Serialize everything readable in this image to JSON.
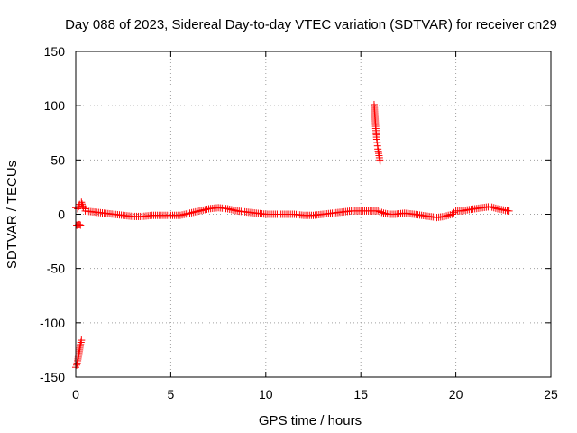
{
  "chart_data": {
    "type": "scatter",
    "title": "Day 088 of 2023, Sidereal Day-to-day VTEC variation (SDTVAR) for receiver cn29",
    "xlabel": "GPS time / hours",
    "ylabel": "SDTVAR / TECUs",
    "xlim": [
      0,
      25
    ],
    "ylim": [
      -150,
      150
    ],
    "xticks": [
      0,
      5,
      10,
      15,
      20,
      25
    ],
    "yticks": [
      -150,
      -100,
      -50,
      0,
      50,
      100,
      150
    ],
    "x_tick_labels": [
      "0",
      "5",
      "10",
      "15",
      "20",
      "25"
    ],
    "y_tick_labels": [
      "-150",
      "-100",
      "-50",
      "0",
      "50",
      "100",
      "150"
    ],
    "grid": true,
    "marker": "+",
    "colors": {
      "series": "#ff0000",
      "grid": "#a0a0a0",
      "axes": "#000000",
      "background": "#ffffff"
    },
    "series": [
      {
        "name": "SDTVAR",
        "segments": [
          {
            "x": [
              0.0,
              0.05,
              0.1,
              0.15,
              0.2,
              0.25,
              0.3
            ],
            "y": [
              -141,
              -139,
              -135,
              -130,
              -125,
              -120,
              -116
            ]
          },
          {
            "x": [
              0.05,
              0.1,
              0.15,
              0.2,
              0.25
            ],
            "y": [
              -10,
              -10,
              -9.5,
              -9.5,
              -10
            ]
          },
          {
            "x": [
              0.0,
              0.1,
              0.2,
              0.3,
              0.4,
              0.5
            ],
            "y": [
              6,
              5,
              9,
              11,
              6,
              5
            ]
          },
          {
            "x": [
              0.5,
              1.0,
              1.5,
              2.0,
              2.5,
              3.0,
              3.5,
              4.0,
              4.5,
              5.0,
              5.5,
              6.0,
              6.5,
              7.0,
              7.5,
              8.0,
              8.5,
              9.0,
              9.5,
              10.0,
              10.5,
              11.0,
              11.5,
              12.0,
              12.5,
              13.0,
              13.5,
              14.0,
              14.5,
              15.0,
              15.5,
              15.9,
              16.2,
              16.5,
              16.8,
              17.3,
              17.8,
              18.2,
              18.6,
              19.0,
              19.4,
              19.8,
              20.0,
              20.3,
              20.6,
              21.0,
              21.4,
              21.8,
              22.2,
              22.5,
              22.8
            ],
            "y": [
              3,
              2,
              1,
              0,
              -1,
              -2,
              -2,
              -1,
              -1,
              -1,
              -1,
              1,
              3,
              5,
              6,
              5,
              3,
              2,
              1,
              0,
              0,
              0,
              0,
              -1,
              -1,
              0,
              1,
              2,
              3,
              3,
              3,
              3,
              1,
              0,
              0,
              1,
              0,
              -1,
              -2,
              -3,
              -2,
              0,
              3,
              3,
              4,
              5,
              6,
              7,
              5,
              4,
              3
            ]
          },
          {
            "x": [
              15.7,
              15.72,
              15.74,
              15.76,
              15.78,
              15.8,
              15.82,
              15.84,
              15.86,
              15.88,
              15.9,
              15.92,
              15.94,
              15.96,
              15.98,
              16.0,
              16.02
            ],
            "y": [
              101,
              96,
              91,
              86,
              81,
              77,
              73,
              69,
              66,
              63,
              60,
              58,
              56,
              54,
              52,
              50,
              49
            ]
          }
        ]
      }
    ]
  }
}
